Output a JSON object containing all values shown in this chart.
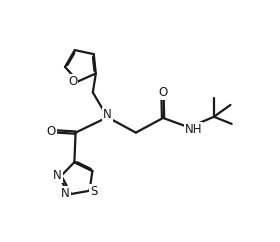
{
  "bg_color": "#ffffff",
  "line_color": "#1a1a1a",
  "line_width": 1.6,
  "font_size": 8.5,
  "fig_width": 2.8,
  "fig_height": 2.42,
  "xlim": [
    0,
    10
  ],
  "ylim": [
    0,
    10
  ]
}
